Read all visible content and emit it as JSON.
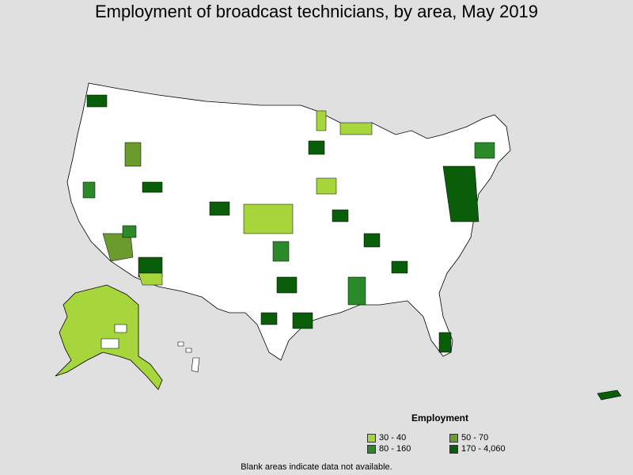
{
  "title": "Employment of broadcast technicians, by area, May 2019",
  "legend": {
    "title": "Employment",
    "items": [
      {
        "label": "30 - 40",
        "color": "#a6d63c"
      },
      {
        "label": "50 - 70",
        "color": "#6b9a2d"
      },
      {
        "label": "80 - 160",
        "color": "#2a8a2a"
      },
      {
        "label": "170 - 4,060",
        "color": "#0a5e0a"
      }
    ]
  },
  "note": "Blank areas indicate data not available.",
  "colors": {
    "background": "#e0e0e0",
    "no_data": "#ffffff",
    "boundary": "#000000"
  }
}
